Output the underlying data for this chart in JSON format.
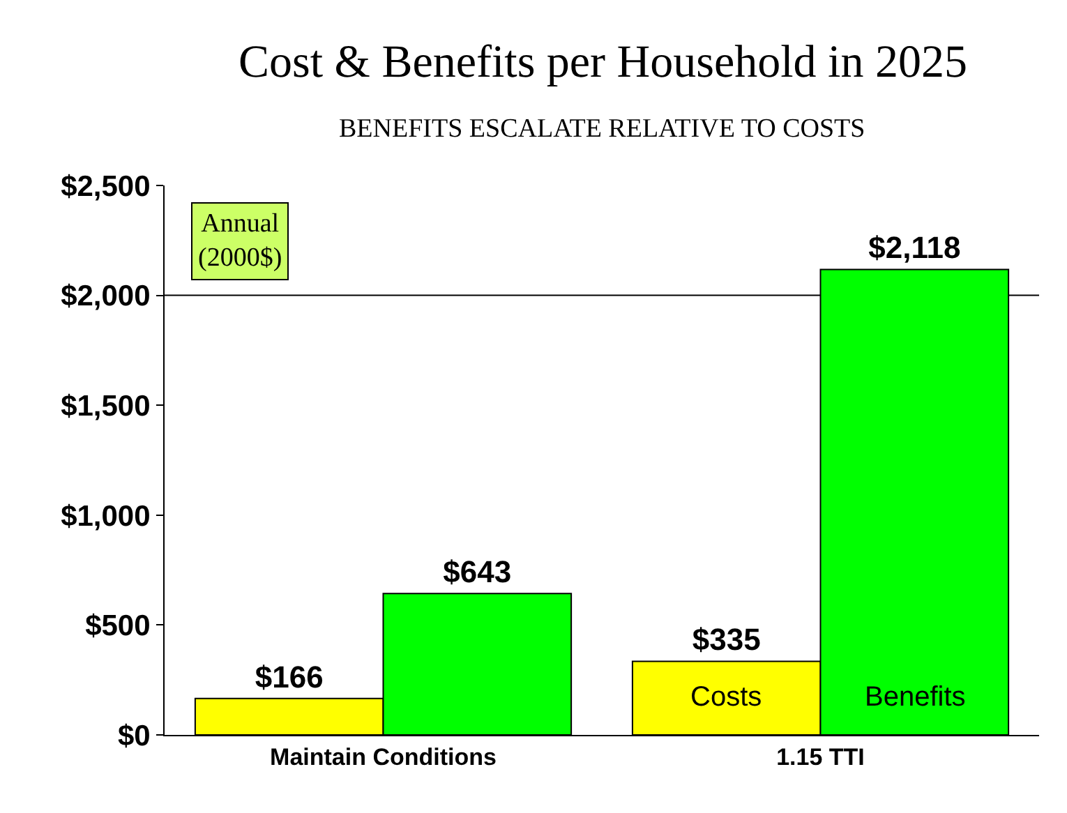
{
  "chart_data": {
    "type": "bar",
    "title": "Cost & Benefits per Household in 2025",
    "subtitle": "BENEFITS ESCALATE RELATIVE TO COSTS",
    "categories": [
      "Maintain Conditions",
      "1.15 TTI"
    ],
    "series": [
      {
        "name": "Costs",
        "color": "#ffff00",
        "values": [
          166,
          335
        ],
        "value_labels": [
          "$166",
          "$335"
        ]
      },
      {
        "name": "Benefits",
        "color": "#00ff00",
        "values": [
          643,
          2118
        ],
        "value_labels": [
          "$643",
          "$2,118"
        ]
      }
    ],
    "annotations": [
      "Annual\n(2000$)"
    ],
    "ylim": [
      0,
      2500
    ],
    "yticks": [
      {
        "value": 0,
        "label": "$0"
      },
      {
        "value": 500,
        "label": "$500"
      },
      {
        "value": 1000,
        "label": "$1,000"
      },
      {
        "value": 1500,
        "label": "$1,500"
      },
      {
        "value": 2000,
        "label": "$2,000"
      },
      {
        "value": 2500,
        "label": "$2,500"
      }
    ],
    "ref_lines": [
      {
        "axis": "y",
        "value": 2000,
        "color": "#000000"
      }
    ],
    "grid": false,
    "legend": false
  }
}
